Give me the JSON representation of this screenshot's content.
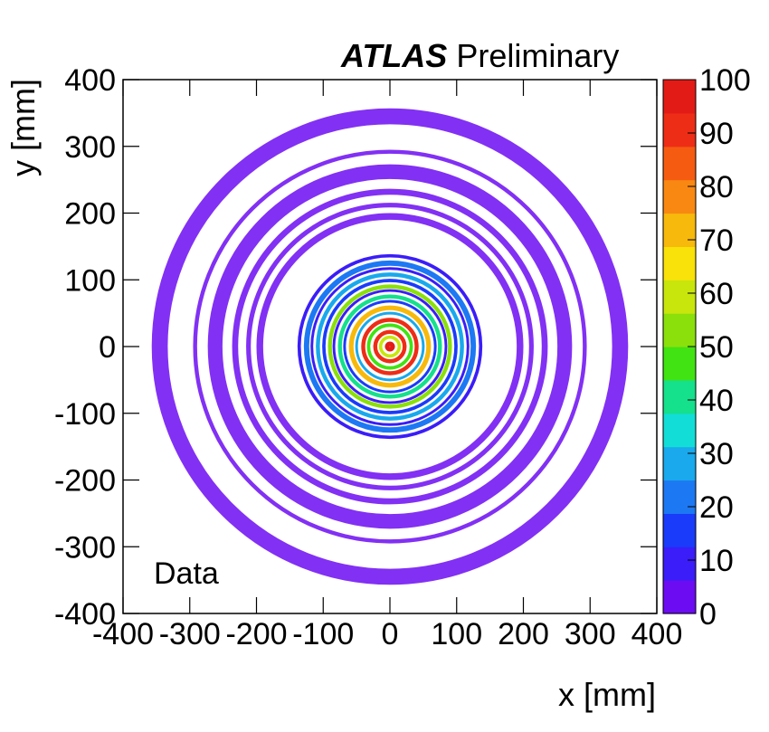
{
  "experiment_title": {
    "bold": "ATLAS",
    "rest": "Preliminary"
  },
  "annotation": "Data",
  "chart_data": {
    "type": "heatmap",
    "title": "",
    "xlabel": "x [mm]",
    "ylabel": "y [mm]",
    "xlim": [
      -400,
      400
    ],
    "ylim": [
      -400,
      400
    ],
    "x_ticks": [
      "-400",
      "-300",
      "-200",
      "-100",
      "0",
      "100",
      "200",
      "300",
      "400"
    ],
    "y_ticks": [
      "-400",
      "-300",
      "-200",
      "-100",
      "0",
      "100",
      "200",
      "300",
      "400"
    ],
    "z_range": [
      0,
      100
    ],
    "z_ticks": [
      "0",
      "10",
      "20",
      "30",
      "40",
      "50",
      "60",
      "70",
      "80",
      "90",
      "100"
    ],
    "palette": [
      "#6c0cf2",
      "#3a1df8",
      "#1a3bfa",
      "#1d78f3",
      "#19a9ec",
      "#12ded7",
      "#15e08c",
      "#41e312",
      "#8be00c",
      "#c8e60c",
      "#f9e10a",
      "#f7b90b",
      "#f98812",
      "#f55c12",
      "#ee2d16",
      "#e31b16"
    ],
    "rings": [
      {
        "r_mm": 4,
        "width_mm": 7,
        "value": 96
      },
      {
        "r_mm": 14,
        "width_mm": 5,
        "value": 60
      },
      {
        "r_mm": 22,
        "width_mm": 6,
        "value": 92
      },
      {
        "r_mm": 32,
        "width_mm": 5,
        "value": 45
      },
      {
        "r_mm": 40,
        "width_mm": 6,
        "value": 92
      },
      {
        "r_mm": 50,
        "width_mm": 4,
        "value": 25
      },
      {
        "r_mm": 58,
        "width_mm": 7,
        "value": 70
      },
      {
        "r_mm": 68,
        "width_mm": 4,
        "value": 15
      },
      {
        "r_mm": 75,
        "width_mm": 6,
        "value": 40
      },
      {
        "r_mm": 84,
        "width_mm": 4,
        "value": 12
      },
      {
        "r_mm": 90,
        "width_mm": 6,
        "value": 50
      },
      {
        "r_mm": 99,
        "width_mm": 5,
        "value": 14
      },
      {
        "r_mm": 108,
        "width_mm": 6,
        "value": 30
      },
      {
        "r_mm": 117,
        "width_mm": 4,
        "value": 10
      },
      {
        "r_mm": 125,
        "width_mm": 8,
        "value": 22
      },
      {
        "r_mm": 136,
        "width_mm": 5,
        "value": 8
      },
      {
        "r_mm": 195,
        "width_mm": 10,
        "value": 5
      },
      {
        "r_mm": 212,
        "width_mm": 7,
        "value": 6
      },
      {
        "r_mm": 232,
        "width_mm": 9,
        "value": 4
      },
      {
        "r_mm": 262,
        "width_mm": 22,
        "value": 6
      },
      {
        "r_mm": 292,
        "width_mm": 6,
        "value": 5
      },
      {
        "r_mm": 345,
        "width_mm": 24,
        "value": 4
      }
    ]
  }
}
